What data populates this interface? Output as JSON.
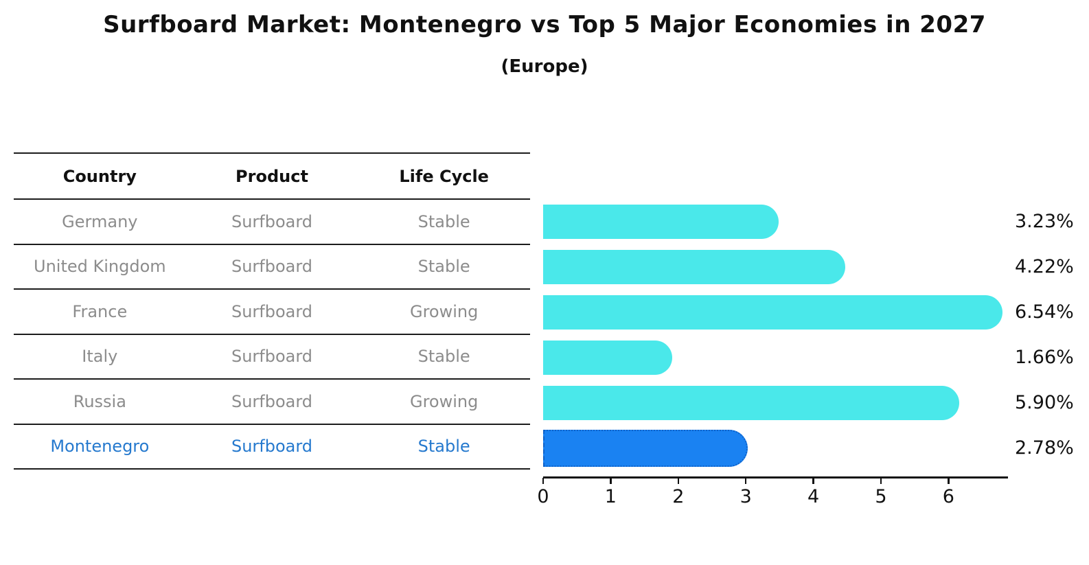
{
  "title": "Surfboard Market: Montenegro vs Top 5 Major Economies in 2027",
  "subtitle": "(Europe)",
  "table": {
    "headers": [
      "Country",
      "Product",
      "Life Cycle"
    ],
    "rows": [
      {
        "country": "Germany",
        "product": "Surfboard",
        "life_cycle": "Stable",
        "highlight": false
      },
      {
        "country": "United Kingdom",
        "product": "Surfboard",
        "life_cycle": "Stable",
        "highlight": false
      },
      {
        "country": "France",
        "product": "Surfboard",
        "life_cycle": "Growing",
        "highlight": false
      },
      {
        "country": "Italy",
        "product": "Surfboard",
        "life_cycle": "Stable",
        "highlight": false
      },
      {
        "country": "Russia",
        "product": "Surfboard",
        "life_cycle": "Growing",
        "highlight": false
      },
      {
        "country": "Montenegro",
        "product": "Surfboard",
        "life_cycle": "Stable",
        "highlight": true
      }
    ]
  },
  "chart_data": {
    "type": "bar",
    "orientation": "horizontal",
    "title": "Surfboard Market: Montenegro vs Top 5 Major Economies in 2027",
    "subtitle": "(Europe)",
    "categories": [
      "Germany",
      "United Kingdom",
      "France",
      "Italy",
      "Russia",
      "Montenegro"
    ],
    "values": [
      3.23,
      4.22,
      6.54,
      1.66,
      5.9,
      2.78
    ],
    "value_labels": [
      "3.23%",
      "4.22%",
      "6.54%",
      "1.66%",
      "5.90%",
      "2.78%"
    ],
    "x_ticks": [
      0,
      1,
      2,
      3,
      4,
      5,
      6
    ],
    "xlim": [
      0,
      6.87
    ],
    "grid": false,
    "legend": false,
    "bar_color": "#4ae8ea",
    "highlight_color": "#1a82f2",
    "highlight_index": 5,
    "highlight_text_color": "#2579ce"
  }
}
